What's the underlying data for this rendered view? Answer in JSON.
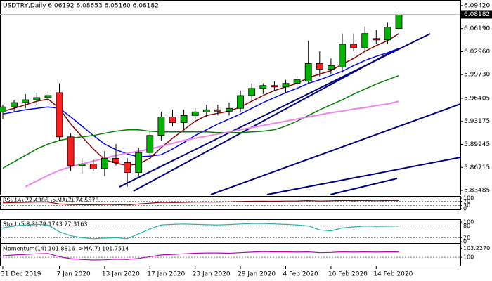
{
  "chart_data": {
    "type": "candlestick",
    "title": "USDTRY,Daily 6.06192 6.08653 6.05160 6.08182",
    "categories": [
      "31 Dec 2019",
      null,
      null,
      null,
      null,
      "7 Jan 2020",
      null,
      null,
      null,
      "13 Jan 2020",
      null,
      null,
      null,
      "17 Jan 2020",
      null,
      null,
      null,
      "23 Jan 2020",
      null,
      null,
      null,
      "29 Jan 2020",
      null,
      null,
      null,
      "4 Feb 2020",
      null,
      null,
      null,
      "10 Feb 2020",
      null,
      null,
      null,
      "14 Feb 2020",
      null,
      null
    ],
    "open": [
      5.945,
      5.952,
      5.958,
      5.962,
      5.965,
      5.972,
      5.91,
      5.87,
      5.872,
      5.866,
      5.88,
      5.874,
      5.86,
      5.888,
      5.912,
      5.938,
      5.93,
      5.94,
      5.945,
      5.948,
      5.946,
      5.95,
      5.968,
      5.978,
      5.982,
      5.98,
      5.985,
      5.988,
      6.013,
      6.005,
      6.008,
      6.04,
      6.035,
      6.048,
      6.046,
      6.06192
    ],
    "high": [
      5.955,
      5.962,
      5.97,
      5.972,
      5.975,
      5.985,
      5.915,
      5.88,
      5.878,
      5.89,
      5.9,
      5.88,
      5.895,
      5.918,
      5.945,
      5.948,
      5.948,
      5.95,
      5.955,
      5.955,
      5.958,
      5.975,
      5.985,
      5.985,
      5.988,
      5.99,
      5.995,
      6.045,
      6.03,
      6.02,
      6.055,
      6.055,
      6.065,
      6.06,
      6.07,
      6.08653
    ],
    "low": [
      5.935,
      5.945,
      5.95,
      5.955,
      5.958,
      5.905,
      5.862,
      5.858,
      5.862,
      5.855,
      5.87,
      5.84,
      5.855,
      5.885,
      5.905,
      5.925,
      5.92,
      5.935,
      5.938,
      5.94,
      5.94,
      5.945,
      5.96,
      5.97,
      5.975,
      5.972,
      5.978,
      5.985,
      5.995,
      5.998,
      6.0,
      6.03,
      6.03,
      6.04,
      6.04,
      6.0516
    ],
    "close": [
      5.952,
      5.958,
      5.962,
      5.965,
      5.968,
      5.91,
      5.87,
      5.872,
      5.865,
      5.88,
      5.874,
      5.86,
      5.888,
      5.912,
      5.938,
      5.93,
      5.94,
      5.945,
      5.948,
      5.946,
      5.95,
      5.968,
      5.978,
      5.982,
      5.98,
      5.985,
      5.99,
      6.013,
      6.005,
      6.01,
      6.04,
      6.035,
      6.055,
      6.046,
      6.064,
      6.08182
    ],
    "up_color": "#00b400",
    "down_color": "#ff1e1e",
    "lines": [
      {
        "color": "#0000ff",
        "values": [
          5.942,
          5.945,
          5.948,
          5.95,
          5.952,
          5.95,
          5.938,
          5.925,
          5.912,
          5.9,
          5.892,
          5.886,
          5.882,
          5.883,
          5.885,
          5.893,
          5.902,
          5.912,
          5.92,
          5.928,
          5.935,
          5.942,
          5.95,
          5.958,
          5.965,
          5.972,
          5.978,
          5.985,
          5.99,
          5.996,
          6.002,
          6.01,
          6.017,
          6.023,
          6.028,
          6.034
        ]
      },
      {
        "color": "#8b0000",
        "values": [
          5.946,
          5.95,
          5.955,
          5.96,
          5.963,
          5.95,
          5.928,
          5.91,
          5.893,
          5.878,
          5.873,
          5.87,
          5.872,
          5.88,
          5.895,
          5.908,
          5.92,
          5.932,
          5.94,
          5.943,
          5.946,
          5.952,
          5.96,
          5.968,
          5.975,
          5.98,
          5.985,
          5.993,
          5.998,
          6.003,
          6.012,
          6.02,
          6.03,
          6.038,
          6.045,
          6.055
        ]
      },
      {
        "color": "#008000",
        "values": [
          5.866,
          5.875,
          5.884,
          5.893,
          5.9,
          5.905,
          5.908,
          5.91,
          5.912,
          5.915,
          5.918,
          5.92,
          5.92,
          5.918,
          5.917,
          5.917,
          5.917,
          5.917,
          5.917,
          5.916,
          5.916,
          5.916,
          5.917,
          5.918,
          5.92,
          5.925,
          5.932,
          5.94,
          5.948,
          5.955,
          5.962,
          5.97,
          5.977,
          5.984,
          5.99,
          5.996
        ]
      },
      {
        "color": "#ee82ee",
        "values": [
          null,
          null,
          5.84,
          5.848,
          5.856,
          5.863,
          5.868,
          5.872,
          5.876,
          5.88,
          5.884,
          5.887,
          5.89,
          5.893,
          5.897,
          5.901,
          5.905,
          5.908,
          5.911,
          5.914,
          5.917,
          5.92,
          5.923,
          5.926,
          5.929,
          5.932,
          5.935,
          5.938,
          5.941,
          5.944,
          5.946,
          5.949,
          5.951,
          5.954,
          5.956,
          5.96
        ]
      }
    ],
    "ylim": [
      5.829,
      6.102
    ],
    "yticks": [
      {
        "value": 6.0942,
        "label": "6.09420"
      },
      {
        "value": 6.0619,
        "label": "6.06190"
      },
      {
        "value": 6.0296,
        "label": "6.02960"
      },
      {
        "value": 5.9973,
        "label": "5.99730"
      },
      {
        "value": 5.96405,
        "label": "5.96405"
      },
      {
        "value": 5.93175,
        "label": "5.93175"
      },
      {
        "value": 5.89945,
        "label": "5.89945"
      },
      {
        "value": 5.86715,
        "label": "5.86715"
      },
      {
        "value": 5.83485,
        "label": "5.83485"
      }
    ],
    "last_price": 6.08182,
    "indicators": [
      {
        "title": "RSI(14) 77.4386 ->MA(7) 74.5578",
        "color": "#8b0000",
        "values": [
          55,
          58,
          60,
          62,
          63,
          45,
          38,
          37,
          36,
          40,
          38,
          35,
          45,
          52,
          60,
          58,
          60,
          62,
          63,
          62,
          64,
          68,
          70,
          71,
          70,
          72,
          73,
          76,
          72,
          74,
          78,
          76,
          78,
          75,
          77,
          77.4386
        ],
        "ylim": [
          0,
          100
        ],
        "yticks": [
          100,
          70,
          30,
          0
        ],
        "levels": [
          70,
          30
        ]
      },
      {
        "title": "Stoch(5,3,3) 79.1743 77.3163",
        "color": "#20b2aa",
        "values": [
          70,
          80,
          85,
          88,
          85,
          50,
          30,
          20,
          15,
          18,
          20,
          15,
          40,
          65,
          85,
          88,
          90,
          88,
          86,
          85,
          87,
          90,
          92,
          93,
          90,
          88,
          85,
          80,
          60,
          55,
          70,
          75,
          80,
          78,
          79,
          79.1743
        ],
        "ylim": [
          0,
          100
        ],
        "yticks": [
          100,
          80,
          20,
          0
        ],
        "levels": [
          80,
          20
        ]
      },
      {
        "title": "Momentum(14) 101.8816  ->MA(7) 101.7514",
        "color": "#c000c0",
        "values": [
          100.5,
          100.8,
          101,
          101.2,
          101.3,
          100.2,
          99.5,
          99.2,
          99,
          99.1,
          99.3,
          99.2,
          99.6,
          100.2,
          100.8,
          101,
          101.2,
          101.4,
          101.5,
          101.5,
          101.4,
          101.6,
          101.8,
          102,
          101.9,
          101.9,
          101.8,
          101.9,
          101.6,
          101.7,
          101.9,
          101.8,
          101.9,
          101.8,
          101.9,
          101.8816
        ],
        "ylim": [
          97.5,
          103.8
        ],
        "yticks": [
          {
            "value": 103.227,
            "label": "103.2270"
          },
          100
        ],
        "levels": [
          100
        ]
      }
    ]
  }
}
